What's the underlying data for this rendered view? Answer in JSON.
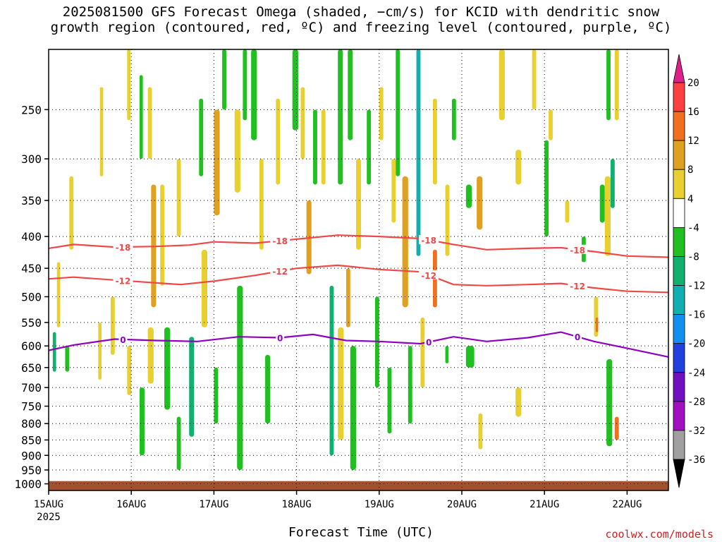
{
  "chart_data": {
    "type": "heatmap",
    "title": "2025081500 GFS Forecast Omega (shaded, −cm/s) for KCID with dendritic snow\ngrowth region (contoured, red, ºC) and freezing level (contoured, purple, ºC)",
    "xlabel": "Forecast Time (UTC)",
    "ylabel": "",
    "x_ticks": [
      "15AUG",
      "16AUG",
      "17AUG",
      "18AUG",
      "19AUG",
      "20AUG",
      "21AUG",
      "22AUG"
    ],
    "x_tick_year": "2025",
    "x_range_days": [
      0,
      7.5
    ],
    "y_ticks": [
      250,
      300,
      350,
      400,
      450,
      500,
      550,
      600,
      650,
      700,
      750,
      800,
      850,
      900,
      950,
      1000
    ],
    "y_range_hpa": [
      200,
      1025
    ],
    "y_scale": "log-pressure",
    "grid": true,
    "colorbar": {
      "ticks": [
        "20",
        "16",
        "12",
        "8",
        "4",
        "-4",
        "-8",
        "-12",
        "-16",
        "-20",
        "-24",
        "-28",
        "-32",
        "-36"
      ],
      "colors": [
        "#ff4040",
        "#f07020",
        "#e0a020",
        "#e8d030",
        "#ffffff",
        "#20c020",
        "#10b070",
        "#10b0b0",
        "#1090f0",
        "#2040e0",
        "#7010c0",
        "#a010c0",
        "#a0a0a0"
      ],
      "top_arrow_color": "#e0208a",
      "bottom_arrow_color": "#000000"
    },
    "contours": [
      {
        "label": "-18",
        "color": "#f04848",
        "x": [
          0,
          0.3,
          0.8,
          1.3,
          1.7,
          2.0,
          2.5,
          3.0,
          3.5,
          4.0,
          4.5,
          4.9,
          5.3,
          5.8,
          6.2,
          6.6,
          7.0,
          7.5
        ],
        "p": [
          418,
          412,
          416,
          415,
          413,
          408,
          410,
          404,
          398,
          400,
          403,
          412,
          420,
          418,
          417,
          423,
          430,
          432
        ]
      },
      {
        "label": "-12",
        "color": "#f04848",
        "x": [
          0,
          0.3,
          0.8,
          1.3,
          1.6,
          2.0,
          2.5,
          3.0,
          3.5,
          4.0,
          4.5,
          4.9,
          5.3,
          5.8,
          6.2,
          6.6,
          7.0,
          7.5
        ],
        "p": [
          468,
          465,
          470,
          475,
          478,
          472,
          462,
          450,
          445,
          452,
          456,
          478,
          480,
          478,
          476,
          484,
          490,
          492
        ]
      },
      {
        "label": "0",
        "color": "#9000c0",
        "x": [
          0,
          0.3,
          0.8,
          1.3,
          1.8,
          2.3,
          2.8,
          3.2,
          3.6,
          4.0,
          4.5,
          4.9,
          5.3,
          5.8,
          6.2,
          6.6,
          7.0,
          7.5
        ],
        "p": [
          610,
          598,
          585,
          588,
          590,
          580,
          582,
          575,
          588,
          590,
          595,
          580,
          590,
          582,
          570,
          590,
          605,
          625
        ]
      }
    ],
    "shaded_regions": [
      {
        "x0": 0.0,
        "x1": 0.07,
        "p0": 560,
        "p1": 940,
        "class": 4
      },
      {
        "x0": 0.05,
        "x1": 0.09,
        "p0": 570,
        "p1": 660,
        "class": 6
      },
      {
        "x0": 0.1,
        "x1": 0.14,
        "p0": 440,
        "p1": 560,
        "class": 3
      },
      {
        "x0": 0.2,
        "x1": 0.25,
        "p0": 600,
        "p1": 660,
        "class": 5
      },
      {
        "x0": 0.25,
        "x1": 0.3,
        "p0": 320,
        "p1": 420,
        "class": 3
      },
      {
        "x0": 0.6,
        "x1": 0.64,
        "p0": 550,
        "p1": 680,
        "class": 3
      },
      {
        "x0": 0.62,
        "x1": 0.66,
        "p0": 230,
        "p1": 320,
        "class": 3
      },
      {
        "x0": 0.75,
        "x1": 0.8,
        "p0": 500,
        "p1": 620,
        "class": 3
      },
      {
        "x0": 0.95,
        "x1": 1.0,
        "p0": 600,
        "p1": 720,
        "class": 3
      },
      {
        "x0": 0.95,
        "x1": 0.99,
        "p0": 200,
        "p1": 260,
        "class": 3
      },
      {
        "x0": 1.1,
        "x1": 1.14,
        "p0": 220,
        "p1": 300,
        "class": 5
      },
      {
        "x0": 1.1,
        "x1": 1.16,
        "p0": 700,
        "p1": 900,
        "class": 5
      },
      {
        "x0": 1.2,
        "x1": 1.25,
        "p0": 230,
        "p1": 300,
        "class": 3
      },
      {
        "x0": 1.24,
        "x1": 1.3,
        "p0": 330,
        "p1": 520,
        "class": 2
      },
      {
        "x0": 1.2,
        "x1": 1.27,
        "p0": 560,
        "p1": 690,
        "class": 3
      },
      {
        "x0": 1.35,
        "x1": 1.4,
        "p0": 330,
        "p1": 480,
        "class": 3
      },
      {
        "x0": 1.4,
        "x1": 1.47,
        "p0": 560,
        "p1": 760,
        "class": 5
      },
      {
        "x0": 1.55,
        "x1": 1.6,
        "p0": 300,
        "p1": 400,
        "class": 3
      },
      {
        "x0": 1.55,
        "x1": 1.6,
        "p0": 780,
        "p1": 950,
        "class": 5
      },
      {
        "x0": 1.7,
        "x1": 1.76,
        "p0": 580,
        "p1": 840,
        "class": 6
      },
      {
        "x0": 1.82,
        "x1": 1.87,
        "p0": 240,
        "p1": 320,
        "class": 5
      },
      {
        "x0": 1.85,
        "x1": 1.92,
        "p0": 420,
        "p1": 560,
        "class": 3
      },
      {
        "x0": 2.0,
        "x1": 2.07,
        "p0": 250,
        "p1": 370,
        "class": 2
      },
      {
        "x0": 2.0,
        "x1": 2.05,
        "p0": 650,
        "p1": 800,
        "class": 5
      },
      {
        "x0": 2.1,
        "x1": 2.15,
        "p0": 200,
        "p1": 250,
        "class": 5
      },
      {
        "x0": 2.25,
        "x1": 2.32,
        "p0": 250,
        "p1": 340,
        "class": 3
      },
      {
        "x0": 2.28,
        "x1": 2.35,
        "p0": 480,
        "p1": 950,
        "class": 5
      },
      {
        "x0": 2.35,
        "x1": 2.4,
        "p0": 200,
        "p1": 260,
        "class": 5
      },
      {
        "x0": 2.45,
        "x1": 2.52,
        "p0": 200,
        "p1": 280,
        "class": 5
      },
      {
        "x0": 2.55,
        "x1": 2.6,
        "p0": 300,
        "p1": 420,
        "class": 3
      },
      {
        "x0": 2.62,
        "x1": 2.68,
        "p0": 620,
        "p1": 800,
        "class": 5
      },
      {
        "x0": 2.75,
        "x1": 2.8,
        "p0": 240,
        "p1": 330,
        "class": 3
      },
      {
        "x0": 2.95,
        "x1": 3.02,
        "p0": 200,
        "p1": 270,
        "class": 5
      },
      {
        "x0": 3.05,
        "x1": 3.1,
        "p0": 230,
        "p1": 300,
        "class": 3
      },
      {
        "x0": 3.12,
        "x1": 3.18,
        "p0": 350,
        "p1": 460,
        "class": 2
      },
      {
        "x0": 3.2,
        "x1": 3.25,
        "p0": 250,
        "p1": 330,
        "class": 5
      },
      {
        "x0": 3.3,
        "x1": 3.35,
        "p0": 250,
        "p1": 330,
        "class": 3
      },
      {
        "x0": 3.4,
        "x1": 3.45,
        "p0": 480,
        "p1": 900,
        "class": 6
      },
      {
        "x0": 3.5,
        "x1": 3.56,
        "p0": 200,
        "p1": 330,
        "class": 5
      },
      {
        "x0": 3.5,
        "x1": 3.57,
        "p0": 560,
        "p1": 850,
        "class": 3
      },
      {
        "x0": 3.6,
        "x1": 3.65,
        "p0": 450,
        "p1": 560,
        "class": 2
      },
      {
        "x0": 3.62,
        "x1": 3.68,
        "p0": 200,
        "p1": 280,
        "class": 5
      },
      {
        "x0": 3.65,
        "x1": 3.72,
        "p0": 600,
        "p1": 950,
        "class": 5
      },
      {
        "x0": 3.72,
        "x1": 3.78,
        "p0": 300,
        "p1": 420,
        "class": 3
      },
      {
        "x0": 3.85,
        "x1": 3.9,
        "p0": 250,
        "p1": 330,
        "class": 5
      },
      {
        "x0": 3.95,
        "x1": 4.0,
        "p0": 500,
        "p1": 700,
        "class": 5
      },
      {
        "x0": 4.0,
        "x1": 4.05,
        "p0": 230,
        "p1": 280,
        "class": 3
      },
      {
        "x0": 4.1,
        "x1": 4.15,
        "p0": 650,
        "p1": 830,
        "class": 5
      },
      {
        "x0": 4.15,
        "x1": 4.2,
        "p0": 300,
        "p1": 380,
        "class": 3
      },
      {
        "x0": 4.2,
        "x1": 4.25,
        "p0": 200,
        "p1": 320,
        "class": 5
      },
      {
        "x0": 4.28,
        "x1": 4.35,
        "p0": 320,
        "p1": 520,
        "class": 2
      },
      {
        "x0": 4.35,
        "x1": 4.4,
        "p0": 600,
        "p1": 800,
        "class": 5
      },
      {
        "x0": 4.45,
        "x1": 4.5,
        "p0": 200,
        "p1": 430,
        "class": 7
      },
      {
        "x0": 4.5,
        "x1": 4.55,
        "p0": 540,
        "p1": 700,
        "class": 3
      },
      {
        "x0": 4.65,
        "x1": 4.7,
        "p0": 240,
        "p1": 330,
        "class": 3
      },
      {
        "x0": 4.65,
        "x1": 4.7,
        "p0": 420,
        "p1": 520,
        "class": 1
      },
      {
        "x0": 4.8,
        "x1": 4.85,
        "p0": 330,
        "p1": 430,
        "class": 3
      },
      {
        "x0": 4.8,
        "x1": 4.84,
        "p0": 600,
        "p1": 640,
        "class": 5
      },
      {
        "x0": 4.88,
        "x1": 4.93,
        "p0": 240,
        "p1": 280,
        "class": 5
      },
      {
        "x0": 5.05,
        "x1": 5.12,
        "p0": 330,
        "p1": 360,
        "class": 5
      },
      {
        "x0": 5.05,
        "x1": 5.15,
        "p0": 600,
        "p1": 650,
        "class": 5
      },
      {
        "x0": 5.18,
        "x1": 5.25,
        "p0": 320,
        "p1": 390,
        "class": 2
      },
      {
        "x0": 5.2,
        "x1": 5.25,
        "p0": 770,
        "p1": 880,
        "class": 3
      },
      {
        "x0": 5.45,
        "x1": 5.52,
        "p0": 200,
        "p1": 260,
        "class": 3
      },
      {
        "x0": 5.65,
        "x1": 5.72,
        "p0": 290,
        "p1": 330,
        "class": 3
      },
      {
        "x0": 5.65,
        "x1": 5.72,
        "p0": 700,
        "p1": 780,
        "class": 3
      },
      {
        "x0": 5.85,
        "x1": 5.9,
        "p0": 200,
        "p1": 250,
        "class": 3
      },
      {
        "x0": 6.0,
        "x1": 6.05,
        "p0": 280,
        "p1": 400,
        "class": 5
      },
      {
        "x0": 6.05,
        "x1": 6.1,
        "p0": 250,
        "p1": 280,
        "class": 3
      },
      {
        "x0": 6.25,
        "x1": 6.3,
        "p0": 350,
        "p1": 380,
        "class": 3
      },
      {
        "x0": 6.45,
        "x1": 6.5,
        "p0": 400,
        "p1": 440,
        "class": 5
      },
      {
        "x0": 6.6,
        "x1": 6.65,
        "p0": 500,
        "p1": 580,
        "class": 3
      },
      {
        "x0": 6.62,
        "x1": 6.65,
        "p0": 540,
        "p1": 570,
        "class": 1
      },
      {
        "x0": 6.67,
        "x1": 6.73,
        "p0": 330,
        "p1": 380,
        "class": 5
      },
      {
        "x0": 6.73,
        "x1": 6.8,
        "p0": 320,
        "p1": 430,
        "class": 3
      },
      {
        "x0": 6.75,
        "x1": 6.8,
        "p0": 200,
        "p1": 260,
        "class": 5
      },
      {
        "x0": 6.8,
        "x1": 6.85,
        "p0": 300,
        "p1": 360,
        "class": 6
      },
      {
        "x0": 6.75,
        "x1": 6.82,
        "p0": 630,
        "p1": 870,
        "class": 5
      },
      {
        "x0": 6.85,
        "x1": 6.9,
        "p0": 200,
        "p1": 260,
        "class": 3
      },
      {
        "x0": 6.84,
        "x1": 6.9,
        "p0": 650,
        "p1": 900,
        "class": 4
      },
      {
        "x0": 6.85,
        "x1": 6.9,
        "p0": 780,
        "p1": 850,
        "class": 1
      }
    ],
    "ground_fill_color": "#a0522d",
    "ground_top_hpa": 990
  },
  "watermark": "coolwx.com/models"
}
